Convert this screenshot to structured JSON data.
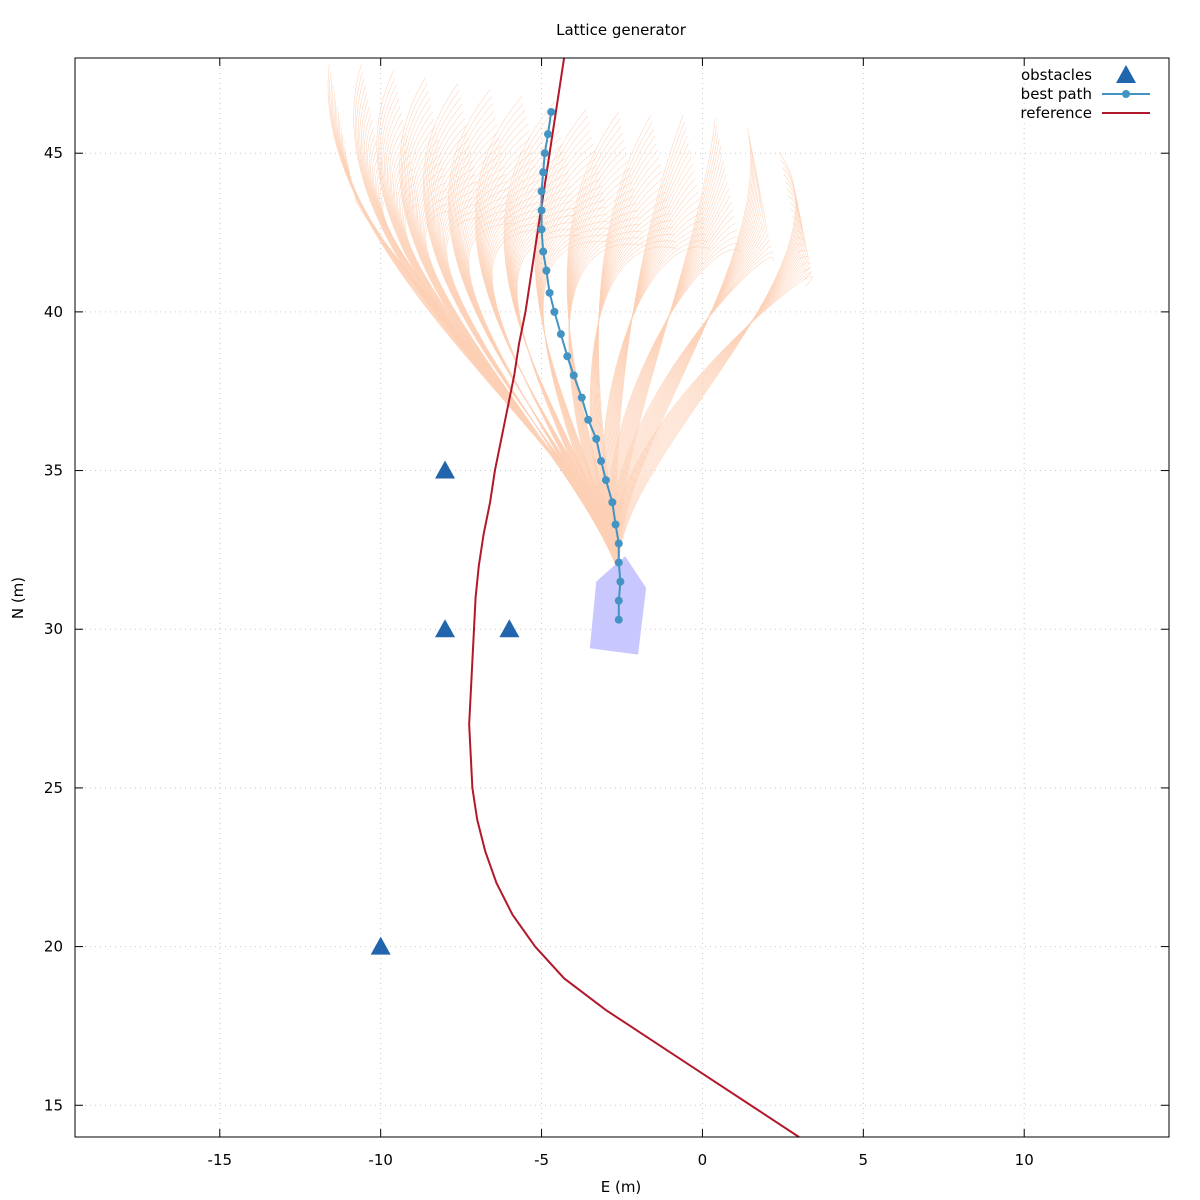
{
  "chart_data": {
    "type": "line",
    "title": "Lattice generator",
    "xlabel": "E (m)",
    "ylabel": "N (m)",
    "xlim": [
      -19.5,
      14.5
    ],
    "ylim": [
      14,
      48
    ],
    "x_ticks": [
      -15,
      -10,
      -5,
      0,
      5,
      10
    ],
    "y_ticks": [
      15,
      20,
      25,
      30,
      35,
      40,
      45
    ],
    "x_tick_labels": [
      "-15",
      "-10",
      "-5",
      "0",
      "5",
      "10"
    ],
    "y_tick_labels": [
      "15",
      "20",
      "25",
      "30",
      "35",
      "40",
      "45"
    ],
    "grid": true,
    "legend_position": "top-right",
    "legend": [
      {
        "label": "obstacles",
        "color": "#2166ac",
        "marker": "triangle"
      },
      {
        "label": "best path",
        "color": "#4393c3",
        "marker": "circle-line"
      },
      {
        "label": "reference",
        "color": "#b2182b",
        "marker": "line"
      }
    ],
    "series": [
      {
        "name": "obstacles",
        "type": "scatter",
        "color": "#2166ac",
        "points": [
          [
            -8,
            35
          ],
          [
            -8,
            30
          ],
          [
            -6,
            30
          ],
          [
            -10,
            20
          ]
        ]
      },
      {
        "name": "best path",
        "type": "line",
        "color": "#4393c3",
        "points": [
          [
            -2.6,
            30.3
          ],
          [
            -2.6,
            30.9
          ],
          [
            -2.55,
            31.5
          ],
          [
            -2.6,
            32.1
          ],
          [
            -2.6,
            32.7
          ],
          [
            -2.7,
            33.3
          ],
          [
            -2.8,
            34.0
          ],
          [
            -3.0,
            34.7
          ],
          [
            -3.15,
            35.3
          ],
          [
            -3.3,
            36.0
          ],
          [
            -3.55,
            36.6
          ],
          [
            -3.75,
            37.3
          ],
          [
            -4.0,
            38.0
          ],
          [
            -4.2,
            38.6
          ],
          [
            -4.4,
            39.3
          ],
          [
            -4.6,
            40.0
          ],
          [
            -4.75,
            40.6
          ],
          [
            -4.85,
            41.3
          ],
          [
            -4.95,
            41.9
          ],
          [
            -5.0,
            42.6
          ],
          [
            -5.0,
            43.2
          ],
          [
            -5.0,
            43.8
          ],
          [
            -4.95,
            44.4
          ],
          [
            -4.9,
            45.0
          ],
          [
            -4.8,
            45.6
          ],
          [
            -4.7,
            46.3
          ]
        ]
      },
      {
        "name": "reference",
        "type": "line",
        "color": "#b2182b",
        "points": [
          [
            3.0,
            14.0
          ],
          [
            1.5,
            15.0
          ],
          [
            0.0,
            16.0
          ],
          [
            -1.5,
            17.0
          ],
          [
            -3.0,
            18.0
          ],
          [
            -4.3,
            19.0
          ],
          [
            -5.2,
            20.0
          ],
          [
            -5.9,
            21.0
          ],
          [
            -6.4,
            22.0
          ],
          [
            -6.75,
            23.0
          ],
          [
            -7.0,
            24.0
          ],
          [
            -7.15,
            25.0
          ],
          [
            -7.2,
            26.0
          ],
          [
            -7.25,
            27.0
          ],
          [
            -7.2,
            28.0
          ],
          [
            -7.15,
            29.0
          ],
          [
            -7.1,
            30.0
          ],
          [
            -7.05,
            31.0
          ],
          [
            -6.95,
            32.0
          ],
          [
            -6.8,
            33.0
          ],
          [
            -6.6,
            34.0
          ],
          [
            -6.45,
            35.0
          ],
          [
            -6.25,
            36.0
          ],
          [
            -6.05,
            37.0
          ],
          [
            -5.85,
            38.0
          ],
          [
            -5.7,
            39.0
          ],
          [
            -5.5,
            40.0
          ],
          [
            -5.35,
            41.0
          ],
          [
            -5.2,
            42.0
          ],
          [
            -5.05,
            43.0
          ],
          [
            -4.9,
            44.0
          ],
          [
            -4.75,
            45.0
          ],
          [
            -4.6,
            46.0
          ],
          [
            -4.45,
            47.0
          ],
          [
            -4.3,
            48.0
          ]
        ]
      },
      {
        "name": "vehicle footprint",
        "type": "polygon",
        "color": "#c8c8ff",
        "points": [
          [
            -2.4,
            32.3
          ],
          [
            -1.75,
            31.3
          ],
          [
            -2.0,
            29.2
          ],
          [
            -3.5,
            29.4
          ],
          [
            -3.3,
            31.5
          ],
          [
            -2.75,
            32.0
          ]
        ]
      }
    ],
    "lattice": {
      "color": "#fdd0b5",
      "origin": [
        -2.6,
        31.8
      ],
      "endpoints": [
        [
          -11.6,
          47.8
        ],
        [
          -10.6,
          47.8
        ],
        [
          -9.6,
          47.6
        ],
        [
          -8.6,
          47.4
        ],
        [
          -7.6,
          47.2
        ],
        [
          -6.6,
          47.0
        ],
        [
          -5.6,
          46.8
        ],
        [
          -4.6,
          46.6
        ],
        [
          -3.6,
          46.4
        ],
        [
          -2.6,
          46.3
        ],
        [
          -1.6,
          46.2
        ],
        [
          -0.6,
          46.2
        ],
        [
          0.4,
          46.1
        ],
        [
          1.4,
          45.8
        ],
        [
          2.4,
          45.0
        ]
      ],
      "leftmost_bulge": -12.3,
      "lines_per_fan": 20
    }
  }
}
